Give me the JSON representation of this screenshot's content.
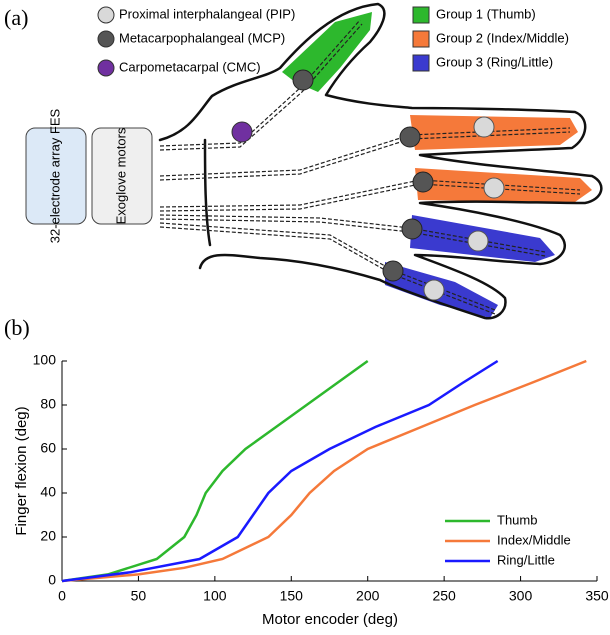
{
  "panel_a_label": "(a)",
  "panel_b_label": "(b)",
  "diagram": {
    "joints": [
      {
        "label": "Proximal interphalangeal  (PIP)",
        "color": "#d9d9d9"
      },
      {
        "label": "Metacarpophalangeal (MCP)",
        "color": "#555555"
      },
      {
        "label": "Carpometacarpal (CMC)",
        "color": "#7030a0"
      }
    ],
    "groups": [
      {
        "label": "Group 1 (Thumb)",
        "color": "#2db82d"
      },
      {
        "label": "Group 2 (Index/Middle)",
        "color": "#f5793a"
      },
      {
        "label": "Group 3 (Ring/Little)",
        "color": "#3a3acf"
      }
    ],
    "boxes": [
      {
        "label": "32-electrode array FES",
        "color": "#dce9f7"
      },
      {
        "label": "Exoglove motors",
        "color": "#efefef"
      }
    ]
  },
  "chart_data": {
    "type": "line",
    "xlabel": "Motor encoder (deg)",
    "ylabel": "Finger flexion (deg)",
    "xlim": [
      0,
      350
    ],
    "ylim": [
      0,
      100
    ],
    "xticks": [
      0,
      50,
      100,
      150,
      200,
      250,
      300,
      350
    ],
    "yticks": [
      0,
      20,
      40,
      60,
      80,
      100
    ],
    "legend": "lower right",
    "series": [
      {
        "name": "Thumb",
        "color": "#2db82d",
        "x": [
          0,
          30,
          62,
          80,
          88,
          94,
          105,
          120,
          140,
          160,
          180,
          200
        ],
        "values": [
          0,
          3,
          10,
          20,
          30,
          40,
          50,
          60,
          70,
          80,
          90,
          100
        ]
      },
      {
        "name": "Index/Middle",
        "color": "#f5793a",
        "x": [
          0,
          50,
          80,
          105,
          135,
          150,
          162,
          178,
          200,
          235,
          270,
          307,
          343
        ],
        "values": [
          0,
          3,
          6,
          10,
          20,
          30,
          40,
          50,
          60,
          70,
          80,
          90,
          100
        ]
      },
      {
        "name": "Ring/Little",
        "color": "#1a1aff",
        "x": [
          0,
          45,
          90,
          115,
          125,
          135,
          150,
          175,
          205,
          240,
          262,
          285
        ],
        "values": [
          0,
          4,
          10,
          20,
          30,
          40,
          50,
          60,
          70,
          80,
          90,
          100
        ]
      }
    ]
  }
}
